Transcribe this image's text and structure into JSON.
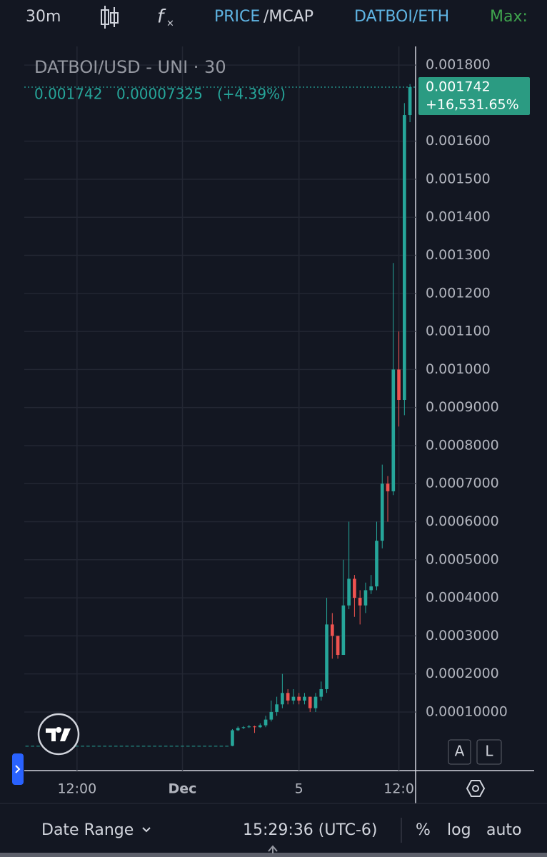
{
  "toolbar": {
    "interval": "30m",
    "price": "PRICE",
    "mcap": "/MCAP",
    "pair": "DATBOI/ETH",
    "max": "Max:"
  },
  "chart_data": {
    "type": "candlestick",
    "legend": {
      "title": "DATBOI/USD - UNI · 30",
      "close": "0.001742",
      "change": "0.00007325",
      "change_pct": "(+4.39%)"
    },
    "price_tag": {
      "price": "0.001742",
      "change": "+16,531.65%"
    },
    "up_color": "#26a69a",
    "down_color": "#ef5350",
    "categories": [
      null,
      null,
      null,
      null,
      null,
      null,
      null,
      null,
      null,
      "12:00",
      null,
      null,
      null,
      null,
      null,
      null,
      null,
      null,
      null,
      null,
      null,
      null,
      null,
      null,
      null,
      null,
      null,
      null,
      "Dec",
      null,
      null,
      null,
      null,
      null,
      null,
      null,
      null,
      null,
      null,
      null,
      null,
      null,
      null,
      null,
      null,
      null,
      null,
      null,
      null,
      "5",
      null,
      null,
      null,
      null,
      null,
      null,
      null,
      null,
      null,
      null,
      null,
      null,
      null,
      null,
      null,
      null,
      null,
      "12:0",
      null,
      null
    ],
    "open": [
      1.1e-05,
      1.1e-05,
      1.1e-05,
      1.1e-05,
      1.1e-05,
      1.1e-05,
      1.1e-05,
      1.1e-05,
      1.1e-05,
      1.1e-05,
      1.1e-05,
      1.1e-05,
      1.1e-05,
      1.1e-05,
      1.1e-05,
      1.1e-05,
      1.1e-05,
      1.1e-05,
      1.1e-05,
      1.1e-05,
      1.1e-05,
      1.1e-05,
      1.1e-05,
      1.1e-05,
      1.1e-05,
      1.1e-05,
      1.1e-05,
      1.1e-05,
      1.1e-05,
      1.1e-05,
      1.1e-05,
      1.1e-05,
      1.1e-05,
      1.1e-05,
      1.1e-05,
      1.1e-05,
      1.1e-05,
      1.1e-05,
      5.2e-05,
      5.8e-05,
      6e-05,
      6.2e-05,
      6e-05,
      6.5e-05,
      8e-05,
      0.0001,
      0.00012,
      0.00015,
      0.00013,
      0.00014,
      0.00013,
      0.00014,
      0.00011,
      0.00014,
      0.00016,
      0.00033,
      0.0003,
      0.00025,
      0.00038,
      0.00045,
      0.0004,
      0.00038,
      0.00042,
      0.00043,
      0.00055,
      0.0007,
      0.00068,
      0.001,
      0.00092,
      0.00166875
    ],
    "high": [
      1.1e-05,
      1.1e-05,
      1.1e-05,
      1.1e-05,
      1.1e-05,
      1.1e-05,
      1.1e-05,
      1.1e-05,
      1.1e-05,
      1.1e-05,
      1.1e-05,
      1.1e-05,
      1.1e-05,
      1.1e-05,
      1.1e-05,
      1.1e-05,
      1.1e-05,
      1.1e-05,
      1.1e-05,
      1.1e-05,
      1.1e-05,
      1.1e-05,
      1.1e-05,
      1.1e-05,
      1.1e-05,
      1.1e-05,
      1.1e-05,
      1.1e-05,
      1.1e-05,
      1.1e-05,
      1.1e-05,
      1.1e-05,
      1.1e-05,
      1.1e-05,
      1.1e-05,
      1.1e-05,
      1.1e-05,
      5.5e-05,
      6.2e-05,
      6.3e-05,
      6.6e-05,
      6.4e-05,
      7e-05,
      9e-05,
      0.00013,
      0.00014,
      0.0002,
      0.00016,
      0.00016,
      0.00015,
      0.00015,
      0.00014,
      0.00015,
      0.00018,
      0.0004,
      0.00036,
      0.0003,
      0.0005,
      0.0006,
      0.00046,
      0.00042,
      0.00044,
      0.00046,
      0.0006,
      0.00075,
      0.00072,
      0.00128,
      0.0011,
      0.0017,
      0.00175
    ],
    "low": [
      1.1e-05,
      1.1e-05,
      1.1e-05,
      1.1e-05,
      1.1e-05,
      1.1e-05,
      1.1e-05,
      1.1e-05,
      1.1e-05,
      1.1e-05,
      1.1e-05,
      1.1e-05,
      1.1e-05,
      1.1e-05,
      1.1e-05,
      1.1e-05,
      1.1e-05,
      1.1e-05,
      1.1e-05,
      1.1e-05,
      1.1e-05,
      1.1e-05,
      1.1e-05,
      1.1e-05,
      1.1e-05,
      1.1e-05,
      1.1e-05,
      1.1e-05,
      1.1e-05,
      1.1e-05,
      1.1e-05,
      1.1e-05,
      1.1e-05,
      1.1e-05,
      1.1e-05,
      1.1e-05,
      1.1e-05,
      1e-05,
      5e-05,
      5.5e-05,
      5.8e-05,
      4.5e-05,
      5.8e-05,
      6e-05,
      7.5e-05,
      9e-05,
      0.00011,
      0.00012,
      0.00012,
      0.00012,
      0.00012,
      0.0001,
      0.0001,
      0.00013,
      0.00015,
      0.00024,
      0.00024,
      0.00025,
      0.00037,
      0.00035,
      0.00033,
      0.00036,
      0.00041,
      0.00042,
      0.00053,
      0.0006,
      0.00067,
      0.00085,
      0.00088,
      0.00165
    ],
    "close": [
      1.1e-05,
      1.1e-05,
      1.1e-05,
      1.1e-05,
      1.1e-05,
      1.1e-05,
      1.1e-05,
      1.1e-05,
      1.1e-05,
      1.1e-05,
      1.1e-05,
      1.1e-05,
      1.1e-05,
      1.1e-05,
      1.1e-05,
      1.1e-05,
      1.1e-05,
      1.1e-05,
      1.1e-05,
      1.1e-05,
      1.1e-05,
      1.1e-05,
      1.1e-05,
      1.1e-05,
      1.1e-05,
      1.1e-05,
      1.1e-05,
      1.1e-05,
      1.1e-05,
      1.1e-05,
      1.1e-05,
      1.1e-05,
      1.1e-05,
      1.1e-05,
      1.1e-05,
      1.1e-05,
      1.1e-05,
      5.2e-05,
      5.8e-05,
      6e-05,
      6.2e-05,
      6e-05,
      6.5e-05,
      8e-05,
      0.0001,
      0.00012,
      0.00015,
      0.00013,
      0.00014,
      0.00013,
      0.00014,
      0.00011,
      0.00014,
      0.00016,
      0.00033,
      0.0003,
      0.00025,
      0.00038,
      0.00045,
      0.0004,
      0.00038,
      0.00042,
      0.00043,
      0.00055,
      0.0007,
      0.00068,
      0.001,
      0.00092,
      0.00166875,
      0.001742
    ],
    "ylim": [
      -5.4e-05,
      0.001849
    ],
    "yticks": [
      {
        "value": 0.0018,
        "label": "0.001800"
      },
      {
        "value": 0.0016,
        "label": "0.001600"
      },
      {
        "value": 0.0015,
        "label": "0.001500"
      },
      {
        "value": 0.0014,
        "label": "0.001400"
      },
      {
        "value": 0.0013,
        "label": "0.001300"
      },
      {
        "value": 0.0012,
        "label": "0.001200"
      },
      {
        "value": 0.0011,
        "label": "0.001100"
      },
      {
        "value": 0.001,
        "label": "0.001000"
      },
      {
        "value": 0.0009,
        "label": "0.0009000"
      },
      {
        "value": 0.0008,
        "label": "0.0008000"
      },
      {
        "value": 0.0007,
        "label": "0.0007000"
      },
      {
        "value": 0.0006,
        "label": "0.0006000"
      },
      {
        "value": 0.0005,
        "label": "0.0005000"
      },
      {
        "value": 0.0004,
        "label": "0.0004000"
      },
      {
        "value": 0.0003,
        "label": "0.0003000"
      },
      {
        "value": 0.0002,
        "label": "0.0002000"
      },
      {
        "value": 0.0001,
        "label": "0.00010000"
      }
    ],
    "grid": true
  },
  "scale_buttons": {
    "auto": "A",
    "log": "L"
  },
  "footer": {
    "date_range": "Date Range",
    "time": "15:29:36 (UTC-6)",
    "percent": "%",
    "log": "log",
    "auto": "auto"
  }
}
